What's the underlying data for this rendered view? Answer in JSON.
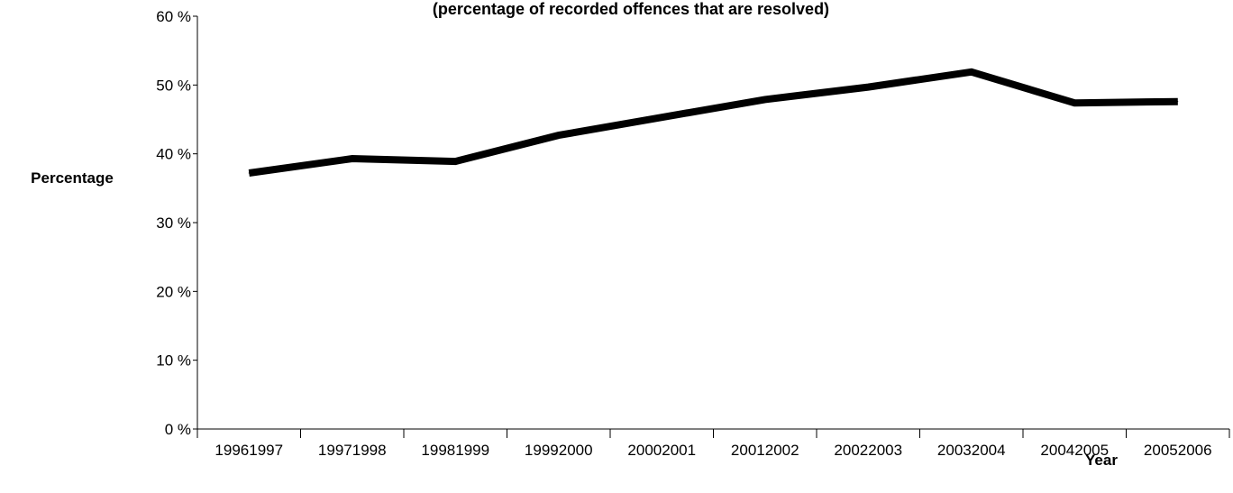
{
  "chart_data": {
    "type": "line",
    "subtitle": "(percentage of recorded offences that are resolved)",
    "xlabel": "Year",
    "ylabel": "Percentage",
    "categories": [
      "19961997",
      "19971998",
      "19981999",
      "19992000",
      "20002001",
      "20012002",
      "20022003",
      "20032004",
      "20042005",
      "20052006"
    ],
    "values": [
      37.2,
      39.3,
      38.9,
      42.7,
      45.3,
      47.9,
      49.7,
      51.9,
      47.4,
      47.6
    ],
    "ylim": [
      0,
      60
    ],
    "yticks": [
      0,
      10,
      20,
      30,
      40,
      50,
      60
    ],
    "yticks_suffix": " %",
    "grid": false,
    "line_color": "#000000"
  }
}
